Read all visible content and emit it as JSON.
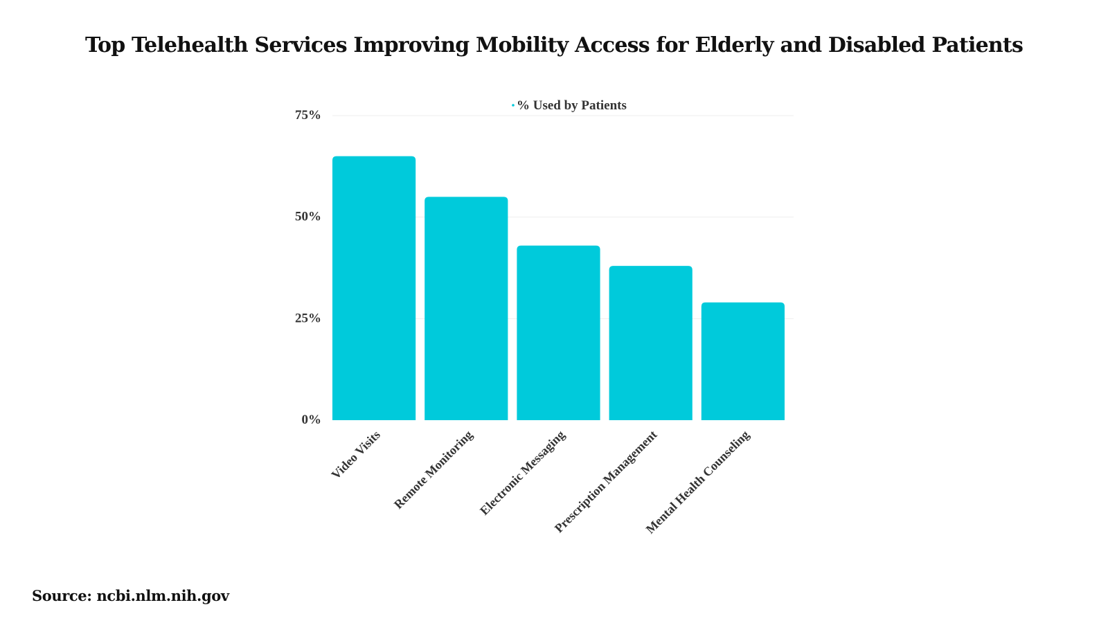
{
  "title": "Top Telehealth Services Improving Mobility Access for Elderly and Disabled Patients",
  "source": "Source: ncbi.nlm.nih.gov",
  "colors": {
    "bar": "#00CADB",
    "grid": "#eeeeee",
    "text": "#333333"
  },
  "chart_data": {
    "type": "bar",
    "title": "Top Telehealth Services Improving Mobility Access for Elderly and Disabled Patients",
    "xlabel": "",
    "ylabel": "",
    "categories": [
      "Video Visits",
      "Remote Monitoring",
      "Electronic Messaging",
      "Prescription Management",
      "Mental Health Counseling"
    ],
    "series": [
      {
        "name": "% Used by Patients",
        "values": [
          65,
          55,
          43,
          38,
          29
        ]
      }
    ],
    "ylim": [
      0,
      75
    ],
    "yticks": [
      0,
      25,
      50,
      75
    ],
    "ytick_labels": [
      "0%",
      "25%",
      "50%",
      "75%"
    ],
    "grid": true,
    "legend": "top-center"
  }
}
